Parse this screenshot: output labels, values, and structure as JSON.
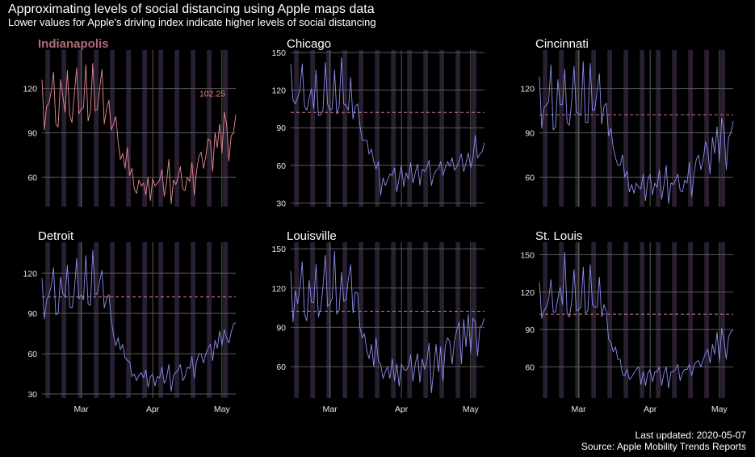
{
  "title": "Approximating levels of social distancing using Apple maps data",
  "subtitle": "Lower values for Apple's driving index indicate higher levels of social distancing",
  "caption": [
    "Last updated: 2020-05-07",
    "Source: Apple Mobility Trends Reports"
  ],
  "colors": {
    "background": "#000000",
    "highlight_line": "#e68a96",
    "other_line": "#8c8cf0",
    "reference_line": "#c77a88",
    "label": "#f07c84",
    "grid": "#5a5a5a",
    "weekend_band": "#2a1f30"
  },
  "chart_data": [
    {
      "type": "line",
      "title": "Indianapolis",
      "highlight": true,
      "x_start": "2020-02-13",
      "x_end": "2020-05-07",
      "ylim": [
        40,
        146
      ],
      "yticks": [
        60,
        90,
        120
      ],
      "xticks": [
        "Mar",
        "Apr",
        "May"
      ],
      "annotation": "102.25",
      "series": [
        {
          "values": [
            126,
            92,
            108,
            110,
            118,
            131,
            96,
            94,
            126,
            115,
            104,
            132,
            102,
            97,
            116,
            134,
            103,
            106,
            107,
            136,
            98,
            104,
            137,
            105,
            106,
            120,
            133,
            96,
            106,
            112,
            92,
            96,
            101,
            84,
            72,
            76,
            66,
            80,
            61,
            66,
            52,
            49,
            58,
            54,
            56,
            48,
            60,
            44,
            59,
            54,
            56,
            58,
            65,
            47,
            57,
            72,
            42,
            58,
            55,
            60,
            67,
            52,
            51,
            60,
            57,
            70,
            48,
            64,
            74,
            77,
            66,
            74,
            86,
            84,
            64,
            90,
            80,
            96,
            76,
            104,
            96,
            71,
            88,
            90,
            102
          ]
        }
      ]
    },
    {
      "type": "line",
      "title": "Chicago",
      "highlight": false,
      "x_start": "2020-02-13",
      "x_end": "2020-05-07",
      "ylim": [
        27,
        152
      ],
      "yticks": [
        30,
        60,
        90,
        120,
        150
      ],
      "xticks": [
        "Mar",
        "Apr",
        "May"
      ],
      "reference": 102.25,
      "series": [
        {
          "values": [
            141,
            112,
            109,
            114,
            120,
            141,
            107,
            104,
            114,
            121,
            105,
            136,
            100,
            100,
            104,
            142,
            109,
            104,
            105,
            136,
            101,
            107,
            146,
            109,
            108,
            104,
            130,
            97,
            107,
            109,
            92,
            80,
            80,
            80,
            69,
            73,
            63,
            57,
            63,
            36,
            50,
            44,
            48,
            53,
            52,
            58,
            39,
            50,
            60,
            43,
            54,
            49,
            62,
            46,
            54,
            61,
            44,
            57,
            55,
            58,
            64,
            44,
            52,
            56,
            57,
            63,
            52,
            58,
            63,
            59,
            66,
            56,
            59,
            64,
            69,
            55,
            62,
            70,
            58,
            66,
            84,
            66,
            69,
            71,
            78
          ]
        }
      ]
    },
    {
      "type": "line",
      "title": "Cincinnati",
      "highlight": false,
      "x_start": "2020-02-13",
      "x_end": "2020-05-07",
      "ylim": [
        40,
        146
      ],
      "yticks": [
        60,
        90,
        120
      ],
      "xticks": [
        "Mar",
        "Apr",
        "May"
      ],
      "reference": 102.25,
      "series": [
        {
          "values": [
            128,
            93,
            107,
            109,
            111,
            136,
            92,
            94,
            126,
            109,
            109,
            133,
            97,
            95,
            112,
            135,
            104,
            103,
            102,
            138,
            97,
            97,
            137,
            105,
            106,
            118,
            130,
            96,
            108,
            110,
            88,
            93,
            80,
            73,
            68,
            68,
            75,
            60,
            64,
            50,
            55,
            49,
            56,
            53,
            52,
            62,
            44,
            58,
            62,
            48,
            56,
            53,
            65,
            45,
            55,
            68,
            42,
            56,
            55,
            58,
            62,
            51,
            50,
            58,
            56,
            70,
            47,
            62,
            72,
            75,
            65,
            72,
            84,
            78,
            62,
            87,
            76,
            94,
            70,
            100,
            93,
            65,
            87,
            90,
            98
          ]
        }
      ]
    },
    {
      "type": "line",
      "title": "Detroit",
      "highlight": false,
      "x_start": "2020-02-13",
      "x_end": "2020-05-07",
      "ylim": [
        27,
        143
      ],
      "yticks": [
        30,
        60,
        90,
        120
      ],
      "xticks": [
        "Mar",
        "Apr",
        "May"
      ],
      "reference": 102.25,
      "series": [
        {
          "values": [
            116,
            86,
            100,
            104,
            110,
            124,
            89,
            90,
            117,
            105,
            102,
            126,
            95,
            94,
            106,
            131,
            101,
            104,
            100,
            133,
            97,
            96,
            137,
            104,
            105,
            114,
            122,
            94,
            101,
            104,
            86,
            74,
            66,
            72,
            63,
            67,
            57,
            55,
            54,
            43,
            45,
            40,
            44,
            46,
            42,
            48,
            35,
            43,
            45,
            36,
            43,
            42,
            50,
            38,
            42,
            52,
            32,
            44,
            46,
            48,
            52,
            40,
            43,
            50,
            49,
            58,
            42,
            54,
            60,
            60,
            53,
            60,
            64,
            67,
            55,
            70,
            64,
            77,
            66,
            78,
            72,
            68,
            76,
            82,
            83
          ]
        }
      ]
    },
    {
      "type": "line",
      "title": "Louisville",
      "highlight": false,
      "x_start": "2020-02-13",
      "x_end": "2020-05-07",
      "ylim": [
        36,
        155
      ],
      "yticks": [
        60,
        90,
        120,
        150
      ],
      "xticks": [
        "Mar",
        "Apr",
        "May"
      ],
      "reference": 102.25,
      "series": [
        {
          "values": [
            133,
            94,
            118,
            108,
            120,
            140,
            100,
            95,
            126,
            109,
            109,
            138,
            98,
            104,
            121,
            145,
            106,
            108,
            112,
            148,
            100,
            103,
            132,
            110,
            111,
            127,
            138,
            101,
            117,
            116,
            90,
            82,
            85,
            72,
            66,
            77,
            60,
            82,
            64,
            62,
            51,
            56,
            60,
            51,
            66,
            49,
            62,
            45,
            62,
            58,
            57,
            60,
            69,
            49,
            62,
            70,
            48,
            66,
            58,
            64,
            78,
            40,
            58,
            77,
            56,
            75,
            49,
            76,
            82,
            79,
            62,
            80,
            88,
            94,
            62,
            96,
            75,
            100,
            70,
            97,
            94,
            68,
            90,
            92,
            97
          ]
        }
      ]
    },
    {
      "type": "line",
      "title": "St. Louis",
      "highlight": false,
      "x_start": "2020-02-13",
      "x_end": "2020-05-07",
      "ylim": [
        35,
        160
      ],
      "yticks": [
        60,
        90,
        120,
        150
      ],
      "xticks": [
        "Mar",
        "Apr",
        "May"
      ],
      "reference": 102.25,
      "series": [
        {
          "values": [
            128,
            99,
            105,
            108,
            114,
            130,
            104,
            104,
            115,
            124,
            110,
            152,
            103,
            100,
            112,
            138,
            105,
            106,
            108,
            140,
            103,
            105,
            142,
            110,
            108,
            108,
            132,
            100,
            110,
            104,
            82,
            80,
            72,
            76,
            66,
            66,
            54,
            53,
            58,
            50,
            52,
            55,
            58,
            60,
            46,
            56,
            45,
            55,
            58,
            48,
            56,
            56,
            60,
            45,
            55,
            60,
            43,
            56,
            56,
            58,
            62,
            49,
            55,
            58,
            58,
            62,
            53,
            61,
            64,
            65,
            60,
            66,
            71,
            74,
            63,
            78,
            70,
            88,
            64,
            91,
            82,
            66,
            84,
            88,
            90
          ]
        }
      ]
    }
  ]
}
